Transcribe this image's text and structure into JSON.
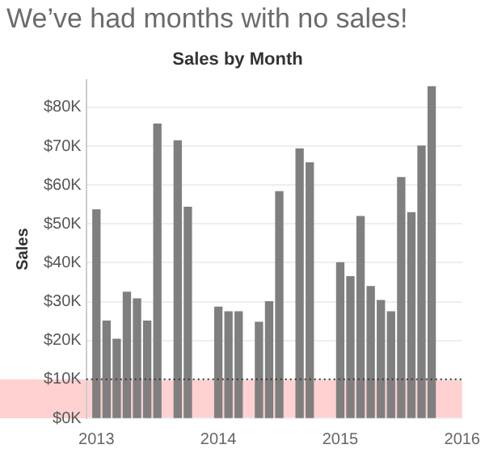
{
  "chart_data": {
    "type": "bar",
    "title": "We’ve had months with no sales!",
    "subtitle": "Sales by Month",
    "ylabel": "Sales",
    "x": [
      "2013-01",
      "2013-02",
      "2013-03",
      "2013-04",
      "2013-05",
      "2013-06",
      "2013-07",
      "2013-08",
      "2013-09",
      "2013-10",
      "2013-11",
      "2013-12",
      "2014-01",
      "2014-02",
      "2014-03",
      "2014-04",
      "2014-05",
      "2014-06",
      "2014-07",
      "2014-08",
      "2014-09",
      "2014-10",
      "2014-11",
      "2014-12",
      "2015-01",
      "2015-02",
      "2015-03",
      "2015-04",
      "2015-05",
      "2015-06",
      "2015-07",
      "2015-08",
      "2015-09",
      "2015-10"
    ],
    "values": [
      53600,
      25000,
      20300,
      32400,
      30700,
      25000,
      75700,
      null,
      71400,
      54300,
      null,
      null,
      28600,
      27400,
      27400,
      null,
      24700,
      30000,
      58300,
      null,
      69300,
      65700,
      null,
      null,
      40000,
      36400,
      51900,
      33900,
      30300,
      27400,
      61900,
      52900,
      70000,
      85300
    ],
    "color": "#7f7f7f",
    "xlim": [
      "2012-12",
      "2016-01"
    ],
    "xticks": [
      {
        "value": "2013-01",
        "label": "2013"
      },
      {
        "value": "2014-01",
        "label": "2014"
      },
      {
        "value": "2015-01",
        "label": "2015"
      },
      {
        "value": "2016-01",
        "label": "2016"
      }
    ],
    "ylim": [
      0,
      87000
    ],
    "yticks": [
      {
        "value": 0,
        "label": "$0K"
      },
      {
        "value": 10000,
        "label": "$10K"
      },
      {
        "value": 20000,
        "label": "$20K"
      },
      {
        "value": 30000,
        "label": "$30K"
      },
      {
        "value": 40000,
        "label": "$40K"
      },
      {
        "value": 50000,
        "label": "$50K"
      },
      {
        "value": 60000,
        "label": "$60K"
      },
      {
        "value": 70000,
        "label": "$70K"
      },
      {
        "value": 80000,
        "label": "$80K"
      }
    ],
    "grid": "y",
    "bands": [
      {
        "axis": "y",
        "from": 0,
        "to": 10000,
        "color": "#ffb3b3"
      }
    ],
    "ref_lines": [
      {
        "axis": "y",
        "value": 10000,
        "color": "#333333",
        "line_style": "dotted"
      }
    ]
  }
}
